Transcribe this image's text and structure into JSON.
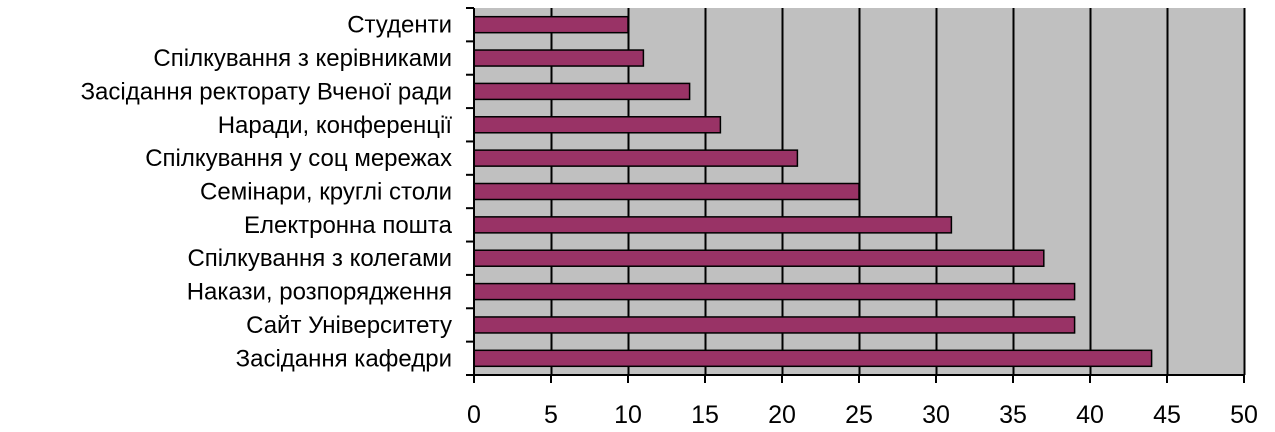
{
  "chart_data": {
    "type": "bar",
    "orientation": "horizontal",
    "categories": [
      "Студенти",
      "Спілкування з керівниками",
      "Засідання ректорату Вченої ради",
      "Наради, конференції",
      "Спілкування у соц мережах",
      "Семінари, круглі столи",
      "Електронна пошта",
      "Спілкування з колегами",
      "Накази, розпорядження",
      "Сайт Університету",
      "Засідання кафедри"
    ],
    "values": [
      10,
      11,
      14,
      16,
      21,
      25,
      31,
      37,
      39,
      39,
      44
    ],
    "xlim": [
      0,
      50
    ],
    "xticks": [
      0,
      5,
      10,
      15,
      20,
      25,
      30,
      35,
      40,
      45,
      50
    ],
    "title": "",
    "xlabel": "",
    "ylabel": "",
    "grid": "vertical",
    "legend": "none",
    "colors": {
      "bar": "#993366",
      "plot_background": "#c0c0c0",
      "grid": "#000000"
    }
  }
}
